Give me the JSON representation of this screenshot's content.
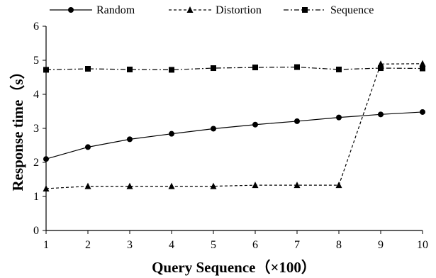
{
  "chart_data": {
    "type": "line",
    "x": [
      1,
      2,
      3,
      4,
      5,
      6,
      7,
      8,
      9,
      10
    ],
    "series": [
      {
        "name": "Random",
        "marker": "circle",
        "line_style": "solid",
        "values": [
          2.1,
          2.45,
          2.68,
          2.84,
          2.99,
          3.11,
          3.21,
          3.32,
          3.41,
          3.48
        ]
      },
      {
        "name": "Distortion",
        "marker": "triangle",
        "line_style": "dashed",
        "values": [
          1.23,
          1.3,
          1.3,
          1.3,
          1.3,
          1.33,
          1.33,
          1.33,
          4.89,
          4.9
        ]
      },
      {
        "name": "Sequence",
        "marker": "square",
        "line_style": "dash-dot",
        "values": [
          4.72,
          4.75,
          4.73,
          4.72,
          4.77,
          4.79,
          4.8,
          4.73,
          4.77,
          4.76
        ]
      }
    ],
    "xlabel": "Query Sequence（×100）",
    "ylabel": "Response time（s）",
    "xlim": [
      1,
      10
    ],
    "ylim": [
      0,
      6
    ],
    "xticks": [
      "1",
      "2",
      "3",
      "4",
      "5",
      "6",
      "7",
      "8",
      "9",
      "10"
    ],
    "yticks": [
      "0",
      "1",
      "2",
      "3",
      "4",
      "5",
      "6"
    ],
    "grid": false,
    "legend_position": "top",
    "colors": {
      "line": "#000000",
      "background": "#ffffff"
    }
  }
}
